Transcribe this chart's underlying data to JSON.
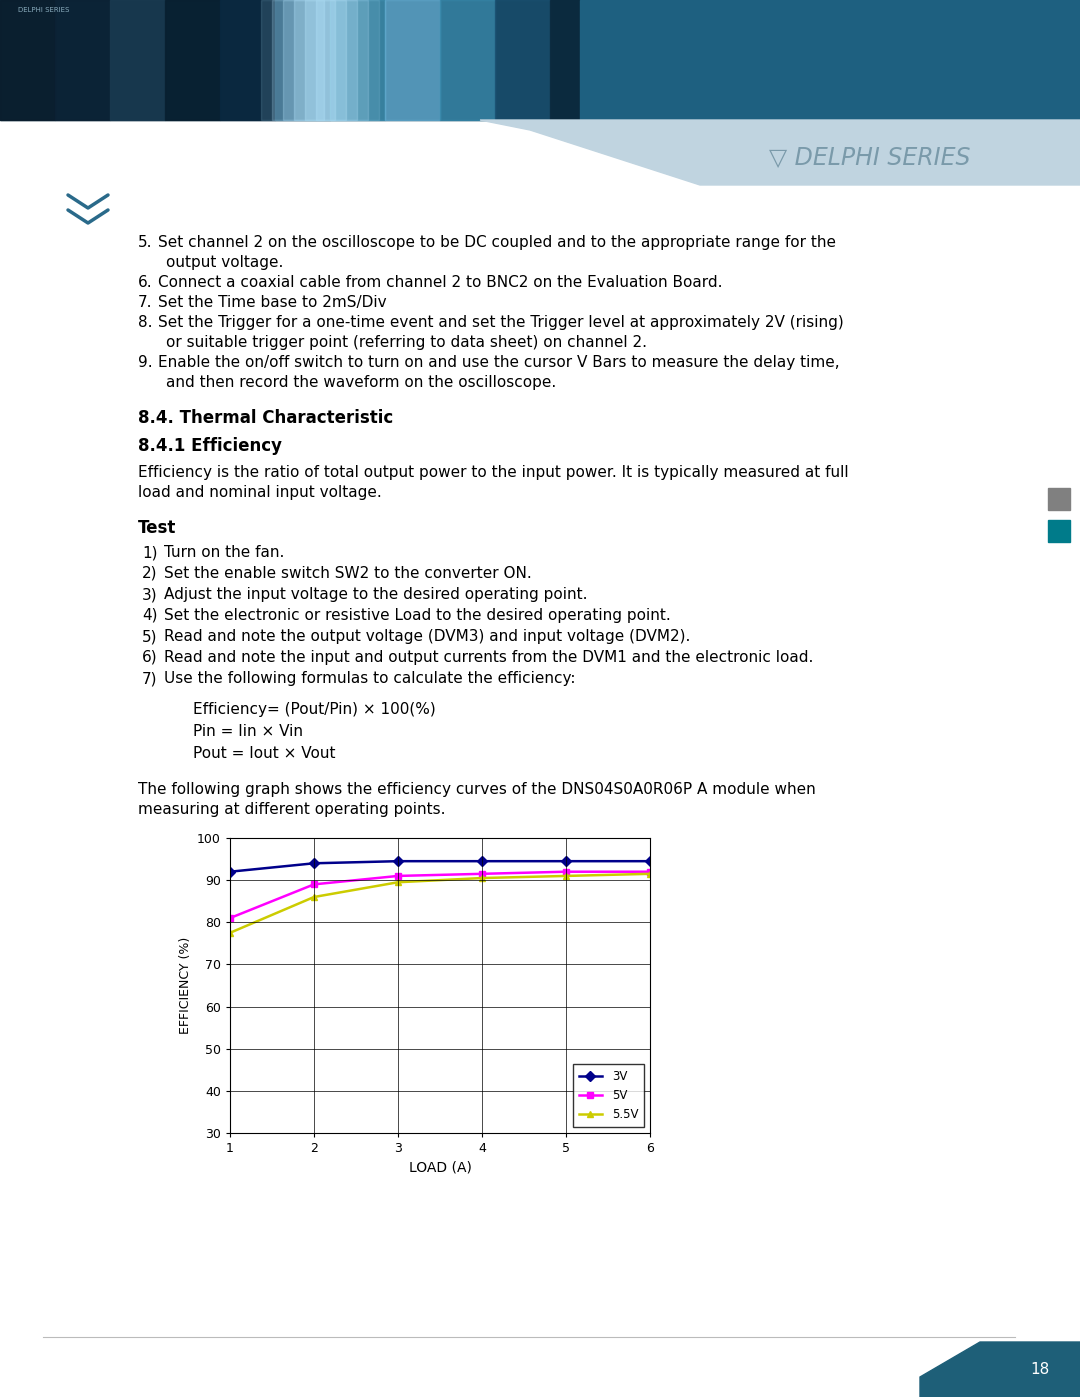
{
  "section_title": "8.4. Thermal Characteristic",
  "subsection_title": "8.4.1 Efficiency",
  "body_text_1_lines": [
    "Efficiency is the ratio of total output power to the input power. It is typically measured at full",
    "load and nominal input voltage."
  ],
  "test_title": "Test",
  "test_steps": [
    "Turn on the fan.",
    "Set the enable switch SW2 to the converter ON.",
    "Adjust the input voltage to the desired operating point.",
    "Set the electronic or resistive Load to the desired operating point.",
    "Read and note the output voltage (DVM3) and input voltage (DVM2).",
    "Read and note the input and output currents from the DVM1 and the electronic load.",
    "Use the following formulas to calculate the efficiency:"
  ],
  "formula_lines": [
    "Efficiency= (Pout/Pin) × 100(%)",
    "Pin = Iin × Vin",
    "Pout = Iout × Vout"
  ],
  "body_text_2_lines": [
    "The following graph shows the efficiency curves of the DNS04S0A0R06P A module when",
    "measuring at different operating points."
  ],
  "prev_steps": [
    [
      "Set channel 2 on the oscilloscope to be DC coupled and to the appropriate range for the",
      "output voltage."
    ],
    [
      "Connect a coaxial cable from channel 2 to BNC2 on the Evaluation Board."
    ],
    [
      "Set the Time base to 2mS/Div"
    ],
    [
      "Set the Trigger for a one-time event and set the Trigger level at approximately 2V (rising)",
      "or suitable trigger point (referring to data sheet) on channel 2."
    ],
    [
      "Enable the on/off switch to turn on and use the cursor V Bars to measure the delay time,",
      "and then record the waveform on the oscilloscope."
    ]
  ],
  "prev_step_nums": [
    5,
    6,
    7,
    8,
    9
  ],
  "graph": {
    "x_label": "LOAD (A)",
    "y_label": "EFFICIENCY (%)",
    "x_min": 1,
    "x_max": 6,
    "y_min": 30,
    "y_max": 100,
    "y_ticks": [
      30,
      40,
      50,
      60,
      70,
      80,
      90,
      100
    ],
    "x_ticks": [
      1,
      2,
      3,
      4,
      5,
      6
    ],
    "series": [
      {
        "label": "3V",
        "color": "#00008B",
        "marker": "D",
        "x": [
          1,
          2,
          3,
          4,
          5,
          6
        ],
        "y": [
          92.0,
          94.0,
          94.5,
          94.5,
          94.5,
          94.5
        ]
      },
      {
        "label": "5V",
        "color": "#FF00FF",
        "marker": "s",
        "x": [
          1,
          2,
          3,
          4,
          5,
          6
        ],
        "y": [
          81.0,
          89.0,
          91.0,
          91.5,
          92.0,
          92.0
        ]
      },
      {
        "label": "5.5V",
        "color": "#CCCC00",
        "marker": "^",
        "x": [
          1,
          2,
          3,
          4,
          5,
          6
        ],
        "y": [
          77.5,
          86.0,
          89.5,
          90.5,
          91.0,
          91.5
        ]
      }
    ]
  },
  "page_number": "18",
  "sidebar_gray": "#808080",
  "sidebar_teal": "#007B8A",
  "header_dark": "#0a2a3f",
  "header_teal": "#1e6080",
  "header_shape": "#c0d4e0",
  "delphi_color": "#7a9aaa",
  "bottom_teal": "#1e5f78"
}
